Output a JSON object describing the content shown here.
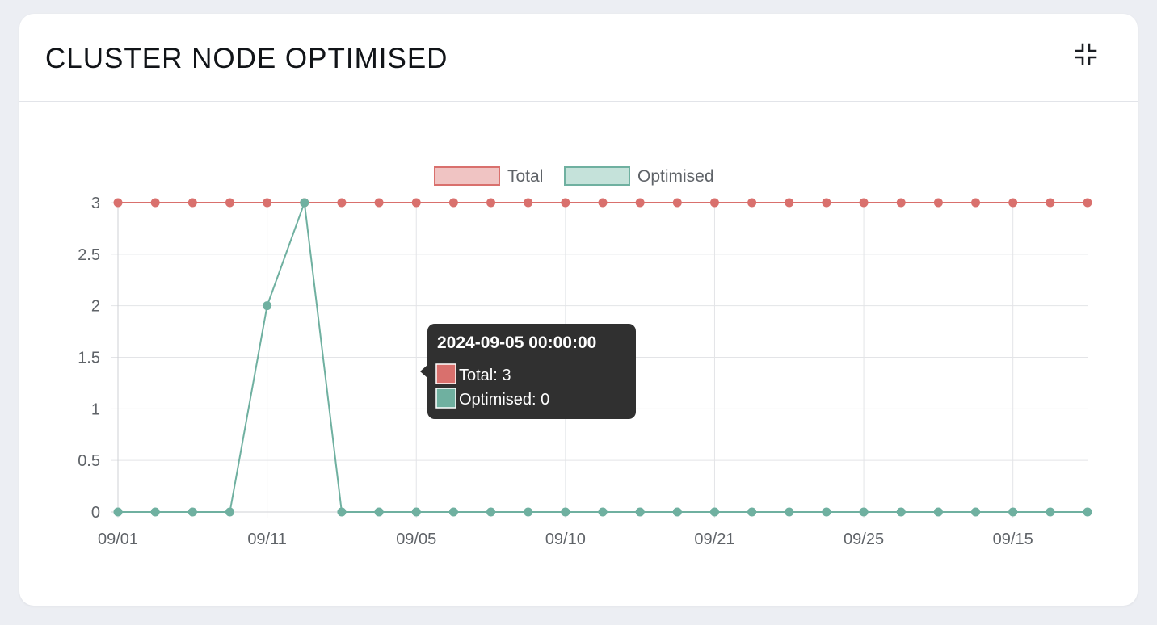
{
  "card": {
    "title": "CLUSTER NODE OPTIMISED",
    "collapse_icon": "collapse-icon"
  },
  "chart_data": {
    "type": "line",
    "categories": [
      "09/01",
      "",
      "",
      "",
      "09/11",
      "",
      "",
      "",
      "09/05",
      "",
      "",
      "",
      "09/10",
      "",
      "",
      "",
      "09/21",
      "",
      "",
      "",
      "09/25",
      "",
      "",
      "",
      "09/15",
      "",
      ""
    ],
    "series": [
      {
        "name": "Total",
        "values": [
          3,
          3,
          3,
          3,
          3,
          3,
          3,
          3,
          3,
          3,
          3,
          3,
          3,
          3,
          3,
          3,
          3,
          3,
          3,
          3,
          3,
          3,
          3,
          3,
          3,
          3,
          3
        ],
        "color": "#d9706d",
        "fill": "#f0c4c3"
      },
      {
        "name": "Optimised",
        "values": [
          0,
          0,
          0,
          0,
          2,
          3,
          0,
          0,
          0,
          0,
          0,
          0,
          0,
          0,
          0,
          0,
          0,
          0,
          0,
          0,
          0,
          0,
          0,
          0,
          0,
          0,
          0
        ],
        "color": "#6fb0a0",
        "fill": "#c5e2da"
      }
    ],
    "ylim": [
      0,
      3
    ],
    "yticks": [
      "0",
      "0.5",
      "1",
      "1.5",
      "2",
      "2.5",
      "3"
    ],
    "grid": true,
    "legend": "top-center",
    "tooltip": {
      "title": "2024-09-05 00:00:00",
      "lines": [
        "Total: 3",
        "Optimised: 0"
      ]
    }
  }
}
